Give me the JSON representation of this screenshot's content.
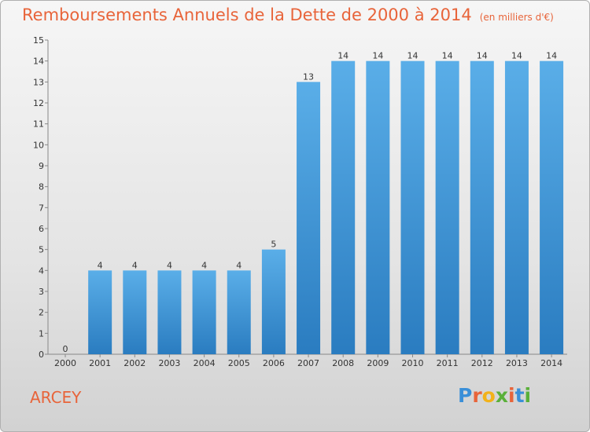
{
  "title": "Remboursements Annuels de la Dette de 2000 à 2014",
  "subtitle": "(en milliers d'€)",
  "city": "ARCEY",
  "logo": {
    "letters": [
      "P",
      "r",
      "o",
      "x",
      "i",
      "t",
      "i"
    ],
    "colors": [
      "#3a8fd8",
      "#e8643a",
      "#f2b21a",
      "#5ab03a",
      "#e8643a",
      "#3a8fd8",
      "#5ab03a"
    ]
  },
  "chart_data": {
    "type": "bar",
    "categories": [
      "2000",
      "2001",
      "2002",
      "2003",
      "2004",
      "2005",
      "2006",
      "2007",
      "2008",
      "2009",
      "2010",
      "2011",
      "2012",
      "2013",
      "2014"
    ],
    "values": [
      0,
      4,
      4,
      4,
      4,
      4,
      5,
      13,
      14,
      14,
      14,
      14,
      14,
      14,
      14
    ],
    "value_labels": [
      "0",
      "4",
      "4",
      "4",
      "4",
      "4",
      "5",
      "13",
      "14",
      "14",
      "14",
      "14",
      "14",
      "14",
      "14"
    ],
    "ylim": [
      0,
      15
    ],
    "yticks": [
      0,
      1,
      2,
      3,
      4,
      5,
      6,
      7,
      8,
      9,
      10,
      11,
      12,
      13,
      14,
      15
    ],
    "title": "Remboursements Annuels de la Dette de 2000 à 2014",
    "xlabel": "",
    "ylabel": "",
    "grid": false,
    "bar_color_top": "#5aaee8",
    "bar_color_bottom": "#2a7cc0",
    "text_color": "#333333",
    "accent_color": "#e8643a"
  }
}
